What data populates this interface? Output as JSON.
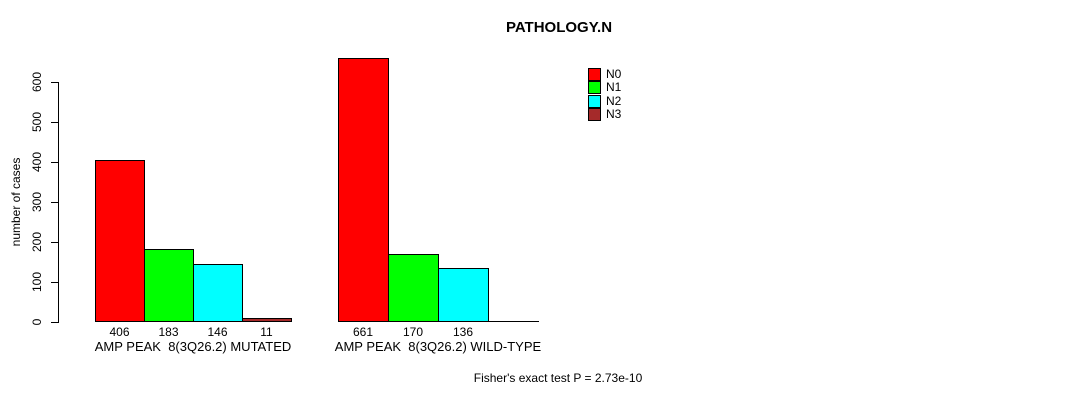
{
  "chart_data": {
    "type": "bar",
    "title": "PATHOLOGY.N",
    "ylabel": "number of cases",
    "ylim": [
      0,
      600
    ],
    "yticks": [
      "0",
      "100",
      "200",
      "300",
      "400",
      "500",
      "600"
    ],
    "grid": false,
    "legend_position": "top-right",
    "legend_entries": [
      "N0",
      "N1",
      "N2",
      "N3"
    ],
    "categories": [
      "AMP PEAK  8(3Q26.2) MUTATED",
      "AMP PEAK  8(3Q26.2) WILD-TYPE"
    ],
    "series": [
      {
        "name": "N0",
        "color": "#ff0000",
        "values": [
          406,
          661
        ]
      },
      {
        "name": "N1",
        "color": "#00ff00",
        "values": [
          183,
          170
        ]
      },
      {
        "name": "N2",
        "color": "#00ffff",
        "values": [
          146,
          136
        ]
      },
      {
        "name": "N3",
        "color": "#a52a2a",
        "values": [
          11,
          0
        ]
      }
    ],
    "bar_labels": [
      [
        "406",
        "183",
        "146",
        "11"
      ],
      [
        "661",
        "170",
        "136",
        ""
      ]
    ],
    "annotation": "Fisher's exact test P = 2.73e-10",
    "axis_color": "#000000",
    "text_color": "#000000"
  }
}
